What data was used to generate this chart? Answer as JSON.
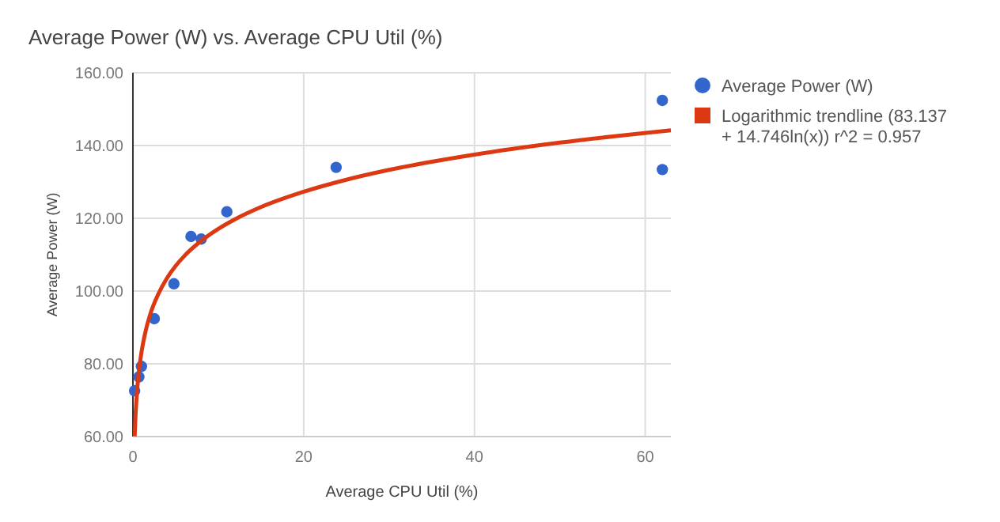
{
  "chart_data": {
    "type": "scatter",
    "title": "Average Power (W) vs. Average CPU Util (%)",
    "xlabel": "Average CPU Util (%)",
    "ylabel": "Average Power (W)",
    "xlim": [
      0,
      63
    ],
    "xticks": [
      0,
      20,
      40,
      60
    ],
    "ylim": [
      60,
      160
    ],
    "yticks": [
      {
        "value": 60,
        "label": "60.00"
      },
      {
        "value": 80,
        "label": "80.00"
      },
      {
        "value": 100,
        "label": "100.00"
      },
      {
        "value": 120,
        "label": "120.00"
      },
      {
        "value": 140,
        "label": "140.00"
      },
      {
        "value": 160,
        "label": "160.00"
      }
    ],
    "grid": true,
    "legend": "top right",
    "series": [
      {
        "name": "Average Power (W)",
        "color": "#3366cc",
        "marker": "circle",
        "x": [
          0.2,
          0.7,
          1,
          2.5,
          4.8,
          6.8,
          8,
          11,
          23.8,
          62,
          62
        ],
        "values": [
          72.6,
          76.4,
          79.3,
          92.4,
          102,
          115,
          114.3,
          121.8,
          134,
          152.4,
          133.4
        ]
      },
      {
        "name": "Logarithmic trendline (83.137 + 14.746ln(x)) r^2 = 0.957",
        "type": "line",
        "color": "#dc3912",
        "line_style": "solid",
        "x": [
          0.21,
          0.3,
          0.5,
          0.7,
          1,
          1.5,
          2,
          3,
          4,
          5,
          6,
          8,
          10,
          12,
          15,
          20,
          25,
          30,
          40,
          50,
          63
        ],
        "values": [
          60.1,
          65.4,
          72.9,
          77.9,
          83.1,
          89.1,
          93.4,
          99.3,
          103.6,
          106.9,
          109.6,
          113.8,
          117.1,
          119.8,
          123.1,
          127.3,
          130.6,
          133.3,
          137.5,
          140.8,
          144.2
        ]
      }
    ]
  }
}
